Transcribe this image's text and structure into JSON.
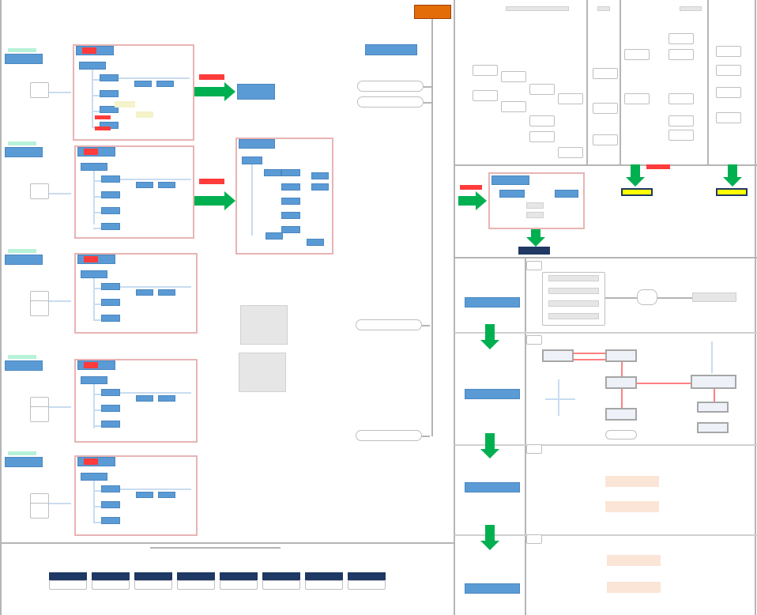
{
  "colors": {
    "frame_border": "#e8b4b4",
    "node_blue": "#5b9bd5",
    "arrow_green": "#00b050",
    "highlight_orange": "#e36c09",
    "highlight_yellow": "#ffff00",
    "navy": "#1f3864",
    "label_red": "#ff3b3b",
    "divider_grey": "#b5b5b5"
  },
  "note": ""
}
